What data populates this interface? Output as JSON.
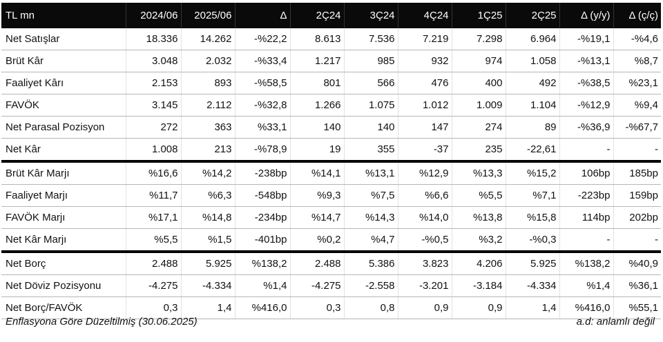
{
  "table": {
    "headers": [
      "TL mn",
      "2024/06",
      "2025/06",
      "Δ",
      "2Ç24",
      "3Ç24",
      "4Ç24",
      "1Ç25",
      "2Ç25",
      "Δ (y/y)",
      "Δ (ç/ç)"
    ],
    "rows": [
      [
        "Net Satışlar",
        "18.336",
        "14.262",
        "-%22,2",
        "8.613",
        "7.536",
        "7.219",
        "7.298",
        "6.964",
        "-%19,1",
        "-%4,6"
      ],
      [
        "Brüt Kâr",
        "3.048",
        "2.032",
        "-%33,4",
        "1.217",
        "985",
        "932",
        "974",
        "1.058",
        "-%13,1",
        "%8,7"
      ],
      [
        "Faaliyet Kârı",
        "2.153",
        "893",
        "-%58,5",
        "801",
        "566",
        "476",
        "400",
        "492",
        "-%38,5",
        "%23,1"
      ],
      [
        "FAVÖK",
        "3.145",
        "2.112",
        "-%32,8",
        "1.266",
        "1.075",
        "1.012",
        "1.009",
        "1.104",
        "-%12,9",
        "%9,4"
      ],
      [
        "Net Parasal Pozisyon",
        "272",
        "363",
        "%33,1",
        "140",
        "140",
        "147",
        "274",
        "89",
        "-%36,9",
        "-%67,7"
      ],
      [
        "Net Kâr",
        "1.008",
        "213",
        "-%78,9",
        "19",
        "355",
        "-37",
        "235",
        "-22,61",
        "-",
        "-"
      ],
      [
        "Brüt Kâr Marjı",
        "%16,6",
        "%14,2",
        "-238bp",
        "%14,1",
        "%13,1",
        "%12,9",
        "%13,3",
        "%15,2",
        "106bp",
        "185bp"
      ],
      [
        "Faaliyet Marjı",
        "%11,7",
        "%6,3",
        "-548bp",
        "%9,3",
        "%7,5",
        "%6,6",
        "%5,5",
        "%7,1",
        "-223bp",
        "159bp"
      ],
      [
        "FAVÖK Marjı",
        "%17,1",
        "%14,8",
        "-234bp",
        "%14,7",
        "%14,3",
        "%14,0",
        "%13,8",
        "%15,8",
        "114bp",
        "202bp"
      ],
      [
        "Net Kâr Marjı",
        "%5,5",
        "%1,5",
        "-401bp",
        "%0,2",
        "%4,7",
        "-%0,5",
        "%3,2",
        "-%0,3",
        "-",
        "-"
      ],
      [
        "Net Borç",
        "2.488",
        "5.925",
        "%138,2",
        "2.488",
        "5.386",
        "3.823",
        "4.206",
        "5.925",
        "%138,2",
        "%40,9"
      ],
      [
        "Net Döviz Pozisyonu",
        "-4.275",
        "-4.334",
        "%1,4",
        "-4.275",
        "-2.558",
        "-3.201",
        "-3.184",
        "-4.334",
        "%1,4",
        "%36,1"
      ],
      [
        "Net Borç/FAVÖK",
        "0,3",
        "1,4",
        "%416,0",
        "0,3",
        "0,8",
        "0,9",
        "0,9",
        "1,4",
        "%416,0",
        "%55,1"
      ]
    ],
    "separator_after_rows": [
      5,
      9
    ]
  },
  "footer": {
    "left": "Enflasyona Göre Düzeltilmiş (30.06.2025)",
    "right": "a.d: anlamlı değil"
  }
}
